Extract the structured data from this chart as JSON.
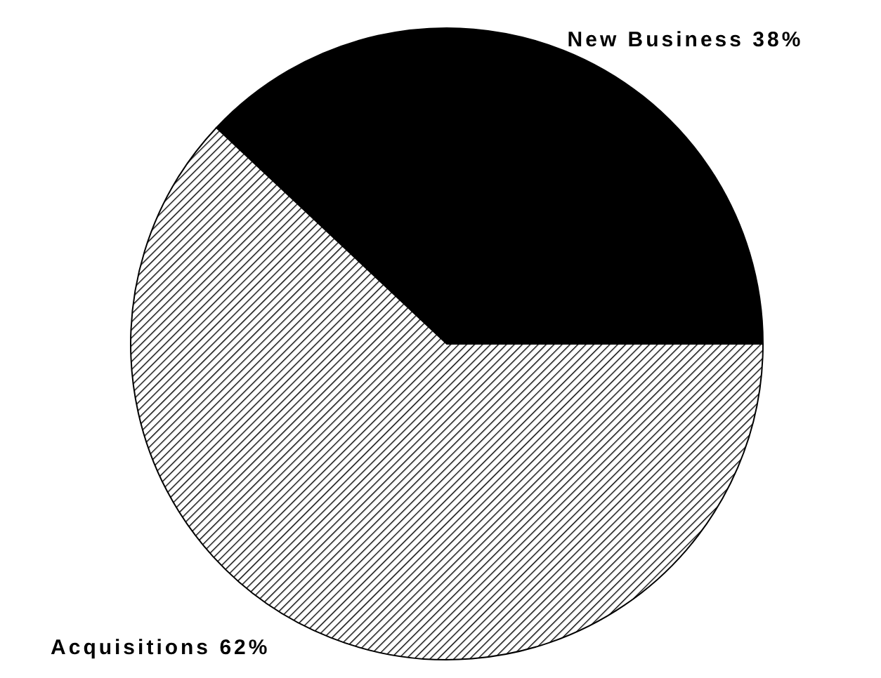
{
  "chart_data": {
    "type": "pie",
    "categories": [
      "New Business",
      "Acquisitions"
    ],
    "values": [
      38,
      62
    ],
    "value_labels": [
      "38%",
      "62%"
    ],
    "colors": [
      "#000000",
      "#000000"
    ],
    "legend": false
  }
}
